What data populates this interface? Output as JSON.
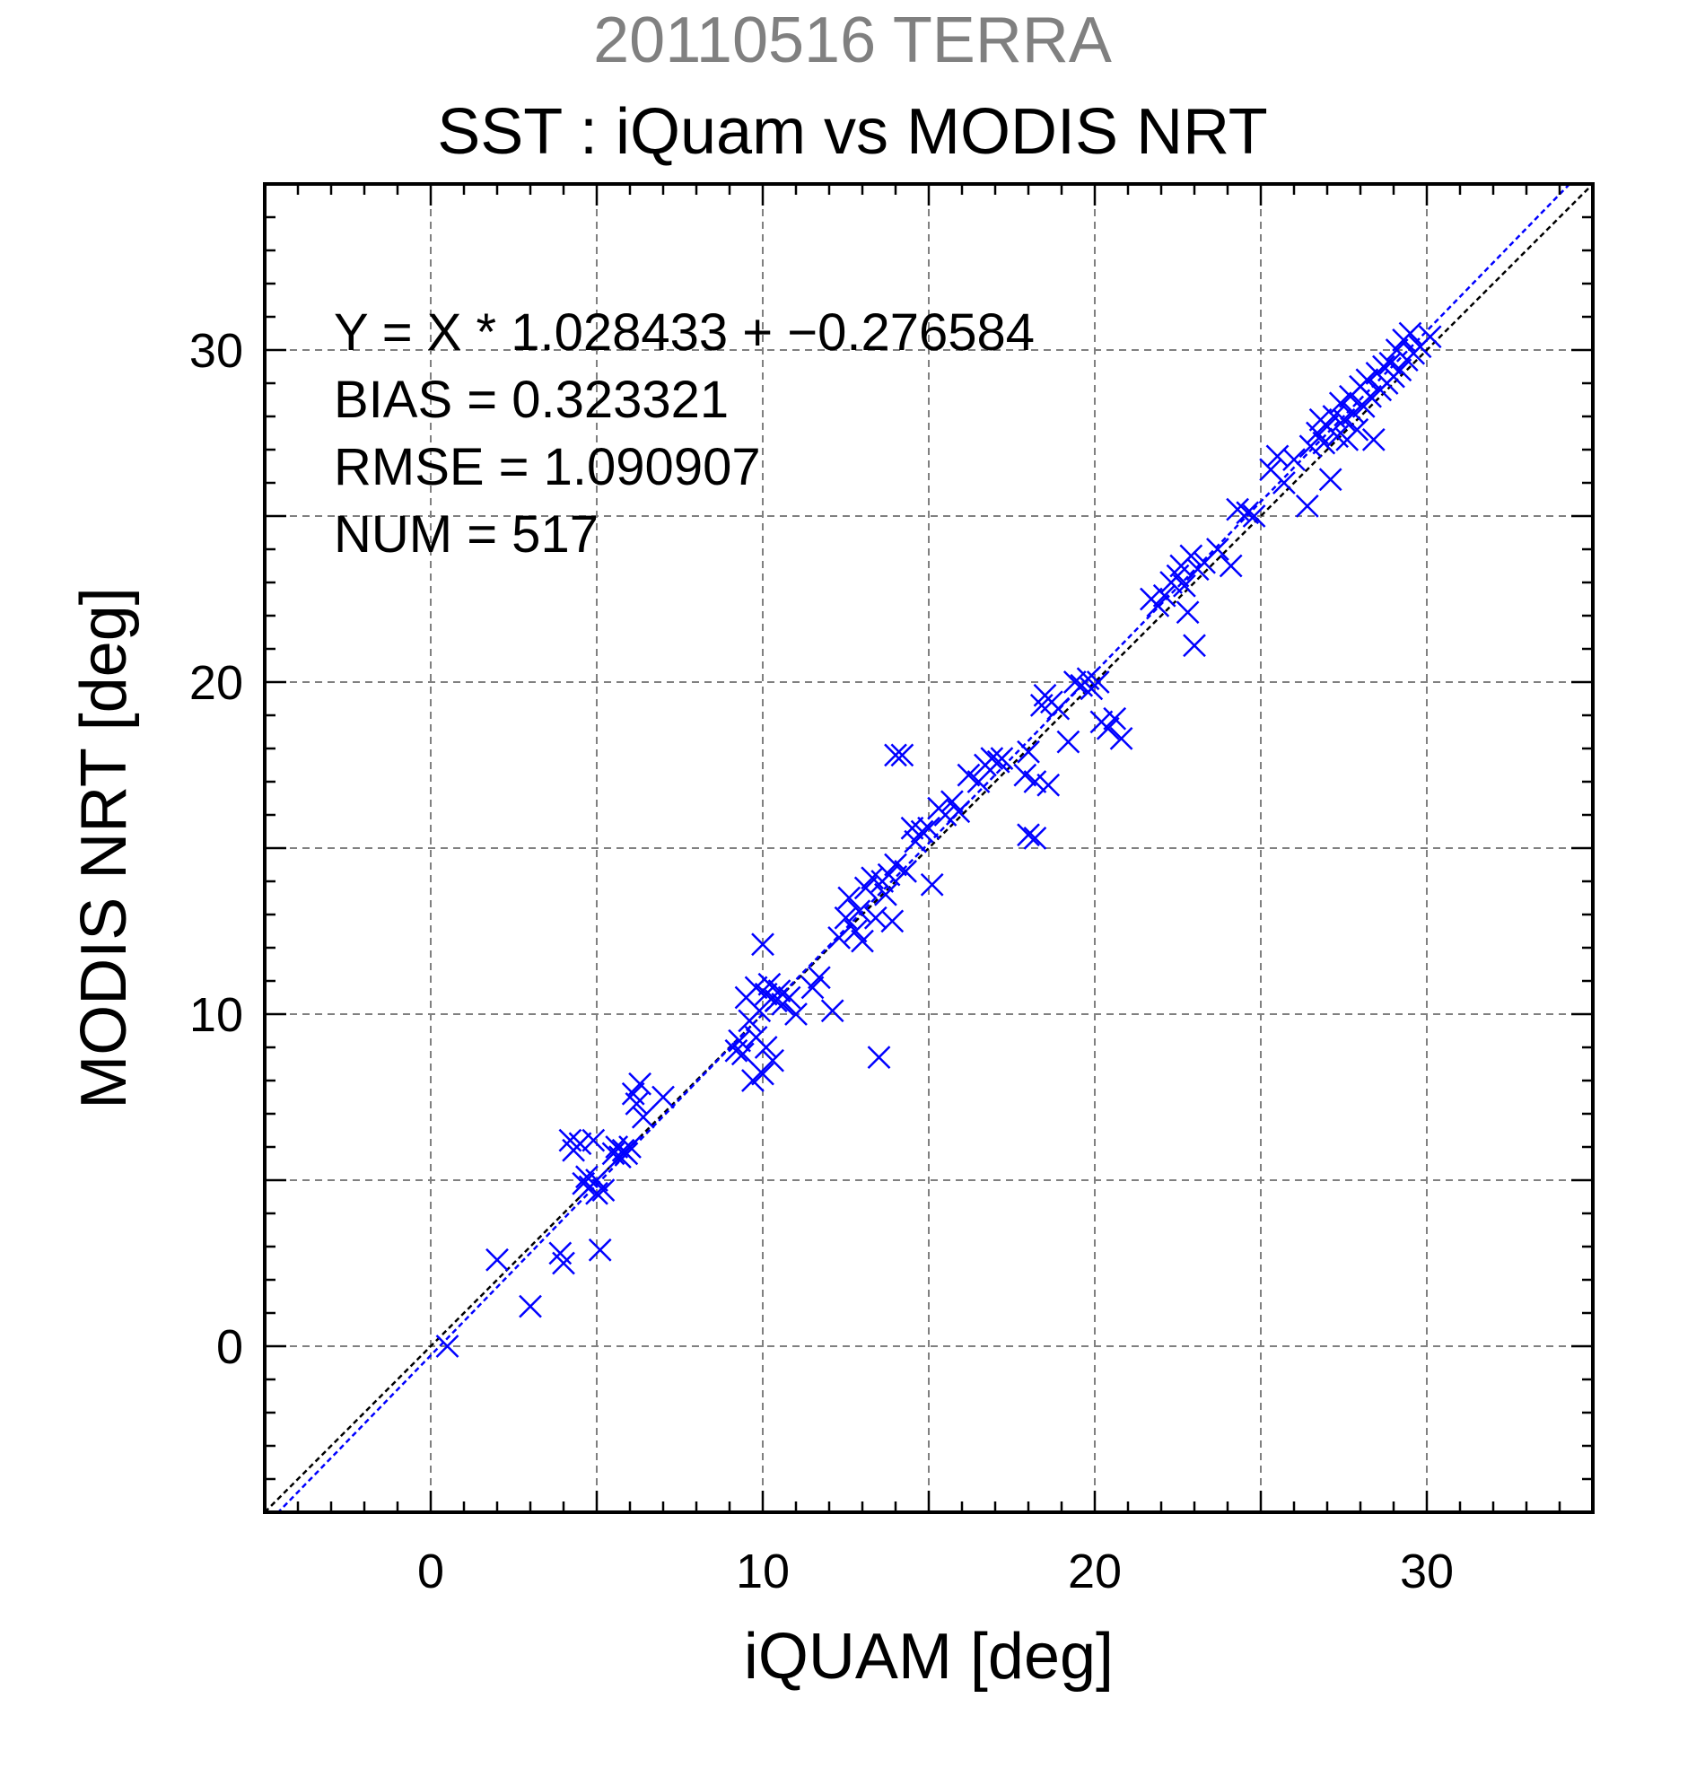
{
  "header": {
    "subtitle": "20110516 TERRA",
    "title": "SST : iQuam vs MODIS NRT"
  },
  "colors": {
    "points": "#0000ff",
    "fit_line": "#0000ff",
    "identity_line": "#000000",
    "grid": "#808080",
    "subtitle": "#808080"
  },
  "stats": {
    "equation": "Y = X * 1.028433 + −0.276584",
    "bias": "BIAS = 0.323321",
    "rmse": "RMSE = 1.090907",
    "num": "NUM = 517"
  },
  "chart_data": {
    "type": "scatter",
    "title": "SST : iQuam vs MODIS NRT",
    "subtitle": "20110516 TERRA",
    "xlabel": "iQUAM [deg]",
    "ylabel": "MODIS NRT [deg]",
    "xlim": [
      -5,
      35
    ],
    "ylim": [
      -5,
      35
    ],
    "xticks": [
      0,
      10,
      20,
      30
    ],
    "yticks": [
      0,
      10,
      20,
      30
    ],
    "grid": true,
    "marker": "x",
    "fit": {
      "slope": 1.028433,
      "intercept": -0.276584
    },
    "identity_line": true,
    "points": [
      [
        0.5,
        0.0
      ],
      [
        2.0,
        2.6
      ],
      [
        3.0,
        1.2
      ],
      [
        3.9,
        2.8
      ],
      [
        4.0,
        2.5
      ],
      [
        4.2,
        6.2
      ],
      [
        4.3,
        5.9
      ],
      [
        4.5,
        6.1
      ],
      [
        4.6,
        4.9
      ],
      [
        4.7,
        5.1
      ],
      [
        4.8,
        4.8
      ],
      [
        4.9,
        6.2
      ],
      [
        5.0,
        5.0
      ],
      [
        5.0,
        4.6
      ],
      [
        5.1,
        2.9
      ],
      [
        5.2,
        4.7
      ],
      [
        5.5,
        5.8
      ],
      [
        5.6,
        6.0
      ],
      [
        5.7,
        5.7
      ],
      [
        5.8,
        5.9
      ],
      [
        5.9,
        5.8
      ],
      [
        6.0,
        6.0
      ],
      [
        6.1,
        7.6
      ],
      [
        6.3,
        7.9
      ],
      [
        6.2,
        7.3
      ],
      [
        6.4,
        6.9
      ],
      [
        7.0,
        7.5
      ],
      [
        9.2,
        8.9
      ],
      [
        9.3,
        9.2
      ],
      [
        9.4,
        8.8
      ],
      [
        9.5,
        10.5
      ],
      [
        9.6,
        9.8
      ],
      [
        9.7,
        8.0
      ],
      [
        9.8,
        10.8
      ],
      [
        9.8,
        9.3
      ],
      [
        9.9,
        10.1
      ],
      [
        10.0,
        12.1
      ],
      [
        10.0,
        8.2
      ],
      [
        10.1,
        10.6
      ],
      [
        10.1,
        9.0
      ],
      [
        10.2,
        10.9
      ],
      [
        10.3,
        8.6
      ],
      [
        10.4,
        10.4
      ],
      [
        10.5,
        10.7
      ],
      [
        10.6,
        10.3
      ],
      [
        10.8,
        10.5
      ],
      [
        11.0,
        10.0
      ],
      [
        11.5,
        10.8
      ],
      [
        11.7,
        11.1
      ],
      [
        12.1,
        10.1
      ],
      [
        12.3,
        12.3
      ],
      [
        12.5,
        12.9
      ],
      [
        12.6,
        13.5
      ],
      [
        12.8,
        12.5
      ],
      [
        12.9,
        13.1
      ],
      [
        13.0,
        12.2
      ],
      [
        13.1,
        13.8
      ],
      [
        13.3,
        14.1
      ],
      [
        13.4,
        12.9
      ],
      [
        13.5,
        8.7
      ],
      [
        13.6,
        14.0
      ],
      [
        13.7,
        13.6
      ],
      [
        13.8,
        14.2
      ],
      [
        13.9,
        12.8
      ],
      [
        14.0,
        14.5
      ],
      [
        14.0,
        17.8
      ],
      [
        14.2,
        17.8
      ],
      [
        14.3,
        14.3
      ],
      [
        14.5,
        15.6
      ],
      [
        14.6,
        15.2
      ],
      [
        14.8,
        15.5
      ],
      [
        15.0,
        15.6
      ],
      [
        15.1,
        13.9
      ],
      [
        15.3,
        16.2
      ],
      [
        15.5,
        16.0
      ],
      [
        15.7,
        16.4
      ],
      [
        15.9,
        16.1
      ],
      [
        16.2,
        17.2
      ],
      [
        16.5,
        17.0
      ],
      [
        16.7,
        17.5
      ],
      [
        16.9,
        17.7
      ],
      [
        17.1,
        17.6
      ],
      [
        17.2,
        17.7
      ],
      [
        17.9,
        17.2
      ],
      [
        18.0,
        15.4
      ],
      [
        18.0,
        17.9
      ],
      [
        18.2,
        15.3
      ],
      [
        18.2,
        17.0
      ],
      [
        18.4,
        19.3
      ],
      [
        18.5,
        19.6
      ],
      [
        18.6,
        16.9
      ],
      [
        18.7,
        19.4
      ],
      [
        18.9,
        19.2
      ],
      [
        19.2,
        18.2
      ],
      [
        19.4,
        20.0
      ],
      [
        19.6,
        19.9
      ],
      [
        19.8,
        20.1
      ],
      [
        19.9,
        19.8
      ],
      [
        20.1,
        20.0
      ],
      [
        20.2,
        18.8
      ],
      [
        20.4,
        18.6
      ],
      [
        20.6,
        18.9
      ],
      [
        20.8,
        18.3
      ],
      [
        21.7,
        22.5
      ],
      [
        21.9,
        22.3
      ],
      [
        22.1,
        22.6
      ],
      [
        22.3,
        23.0
      ],
      [
        22.5,
        23.2
      ],
      [
        22.6,
        23.5
      ],
      [
        22.7,
        22.9
      ],
      [
        22.8,
        22.1
      ],
      [
        22.9,
        23.8
      ],
      [
        23.0,
        21.1
      ],
      [
        23.1,
        23.4
      ],
      [
        23.3,
        23.6
      ],
      [
        23.7,
        24.0
      ],
      [
        24.1,
        23.5
      ],
      [
        24.3,
        25.2
      ],
      [
        24.6,
        25.1
      ],
      [
        24.8,
        25.0
      ],
      [
        25.3,
        26.4
      ],
      [
        25.5,
        26.8
      ],
      [
        25.7,
        26.0
      ],
      [
        26.0,
        26.7
      ],
      [
        26.4,
        25.3
      ],
      [
        26.5,
        27.1
      ],
      [
        26.7,
        27.5
      ],
      [
        26.8,
        27.9
      ],
      [
        26.9,
        27.2
      ],
      [
        27.0,
        27.7
      ],
      [
        27.1,
        26.1
      ],
      [
        27.2,
        28.0
      ],
      [
        27.3,
        27.4
      ],
      [
        27.4,
        28.4
      ],
      [
        27.5,
        27.9
      ],
      [
        27.6,
        27.3
      ],
      [
        27.7,
        28.6
      ],
      [
        27.8,
        28.1
      ],
      [
        27.9,
        27.6
      ],
      [
        28.0,
        28.9
      ],
      [
        28.1,
        28.3
      ],
      [
        28.2,
        29.1
      ],
      [
        28.3,
        28.6
      ],
      [
        28.4,
        27.3
      ],
      [
        28.5,
        29.3
      ],
      [
        28.6,
        28.8
      ],
      [
        28.7,
        29.5
      ],
      [
        28.8,
        29.0
      ],
      [
        28.9,
        29.6
      ],
      [
        29.0,
        29.2
      ],
      [
        29.1,
        30.0
      ],
      [
        29.2,
        29.4
      ],
      [
        29.3,
        30.3
      ],
      [
        29.4,
        29.7
      ],
      [
        29.5,
        30.5
      ],
      [
        29.6,
        29.9
      ],
      [
        29.8,
        30.1
      ],
      [
        30.1,
        30.4
      ]
    ]
  }
}
